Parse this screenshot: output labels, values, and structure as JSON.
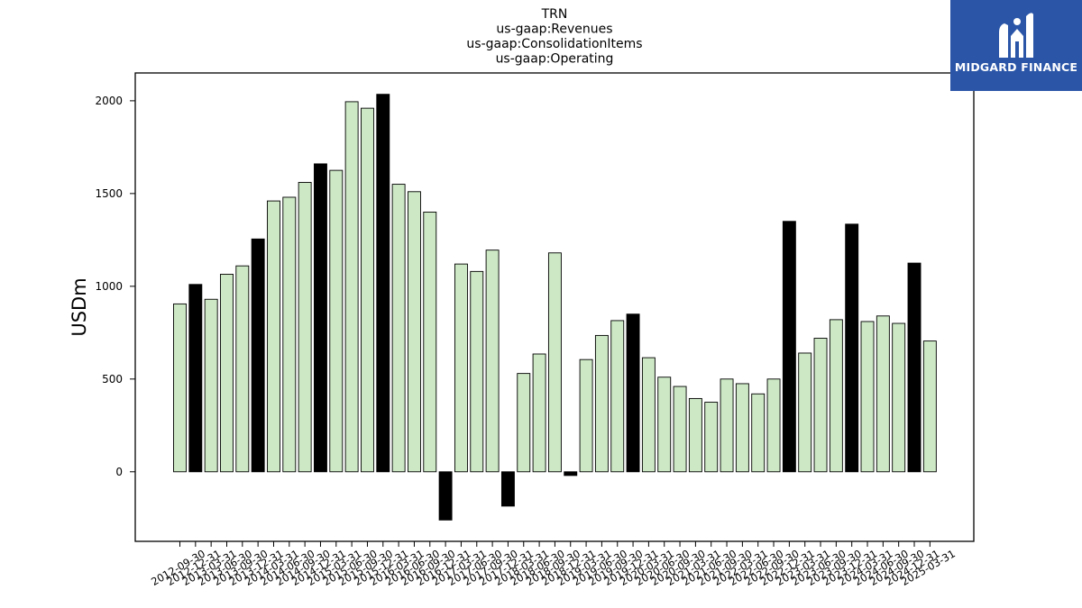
{
  "chart_data": {
    "type": "bar",
    "title_lines": [
      "TRN",
      "us-gaap:Revenues",
      "us-gaap:ConsolidationItems",
      "us-gaap:Operating"
    ],
    "ylabel": "USDm",
    "xlabel": "",
    "ylim": [
      -375,
      2150
    ],
    "yticks": [
      0,
      500,
      1000,
      1500,
      2000
    ],
    "grid": false,
    "colors": {
      "quarter": "#cce8c4",
      "year_end": "#000000",
      "edge": "#000000"
    },
    "categories": [
      "2012-09-30",
      "2012-12-31",
      "2013-03-31",
      "2013-06-30",
      "2013-09-30",
      "2013-12-31",
      "2014-03-31",
      "2014-06-30",
      "2014-09-30",
      "2014-12-31",
      "2015-03-31",
      "2015-06-30",
      "2015-09-30",
      "2015-12-31",
      "2016-03-31",
      "2016-06-30",
      "2016-09-30",
      "2016-12-31",
      "2017-03-31",
      "2017-06-30",
      "2017-09-30",
      "2017-12-31",
      "2018-03-31",
      "2018-06-30",
      "2018-09-30",
      "2018-12-31",
      "2019-03-31",
      "2019-06-30",
      "2019-09-30",
      "2019-12-31",
      "2020-03-31",
      "2020-06-30",
      "2020-09-30",
      "2021-03-31",
      "2021-06-30",
      "2021-09-30",
      "2022-03-31",
      "2022-06-30",
      "2022-09-30",
      "2022-12-31",
      "2023-03-31",
      "2023-06-30",
      "2023-09-30",
      "2023-12-31",
      "2024-03-31",
      "2024-06-30",
      "2024-09-30",
      "2024-12-31",
      "2025-03-31"
    ],
    "values": [
      905,
      1010,
      930,
      1065,
      1110,
      1255,
      1460,
      1480,
      1560,
      1660,
      1625,
      1995,
      1960,
      2035,
      1550,
      1510,
      1400,
      -260,
      1120,
      1080,
      1195,
      -185,
      530,
      635,
      1180,
      -20,
      605,
      735,
      815,
      850,
      615,
      510,
      460,
      395,
      375,
      500,
      475,
      420,
      500,
      1350,
      640,
      720,
      820,
      1335,
      810,
      840,
      800,
      1125,
      705
    ],
    "year_end": [
      false,
      true,
      false,
      false,
      false,
      true,
      false,
      false,
      false,
      true,
      false,
      false,
      false,
      true,
      false,
      false,
      false,
      true,
      false,
      false,
      false,
      true,
      false,
      false,
      false,
      true,
      false,
      false,
      false,
      true,
      false,
      false,
      false,
      false,
      false,
      false,
      false,
      false,
      false,
      true,
      false,
      false,
      false,
      true,
      false,
      false,
      false,
      true,
      false
    ]
  },
  "logo": {
    "text": "MIDGARD FINANCE",
    "icon": "midgard-logo-icon"
  }
}
